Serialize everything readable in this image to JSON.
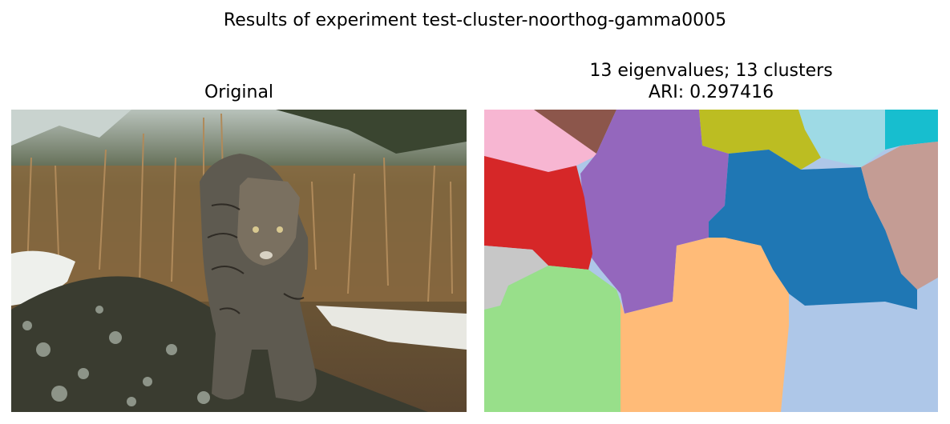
{
  "figure": {
    "suptitle": "Results of experiment test-cluster-noorthog-gamma0005"
  },
  "left_panel": {
    "title": "Original",
    "image_subject": "bobcat standing on a lichen-covered rock in front of dry brown grass and dark pine trees",
    "colors": {
      "sky": "#c9d3cf",
      "trees": "#3f4a33",
      "grass": "#8a6a40",
      "rock": "#3a3c30",
      "lichen": "#8d9488",
      "snow": "#eef0ec",
      "cat": "#5e5a50"
    }
  },
  "right_panel": {
    "title_line1": "13 eigenvalues; 13 clusters",
    "title_line2": "ARI: 0.297416",
    "n_clusters": 13,
    "cluster_colors": {
      "pink": "#f7b6d2",
      "brown": "#8c564b",
      "purple": "#9467bd",
      "olive": "#bcbd22",
      "light_cyan": "#9edae5",
      "cyan": "#17becf",
      "red": "#d62728",
      "blue": "#1f77b4",
      "light_brown": "#c49c94",
      "gray": "#c7c7c7",
      "light_green": "#98df8a",
      "light_orange": "#ffbb78",
      "light_blue": "#aec7e8"
    }
  }
}
